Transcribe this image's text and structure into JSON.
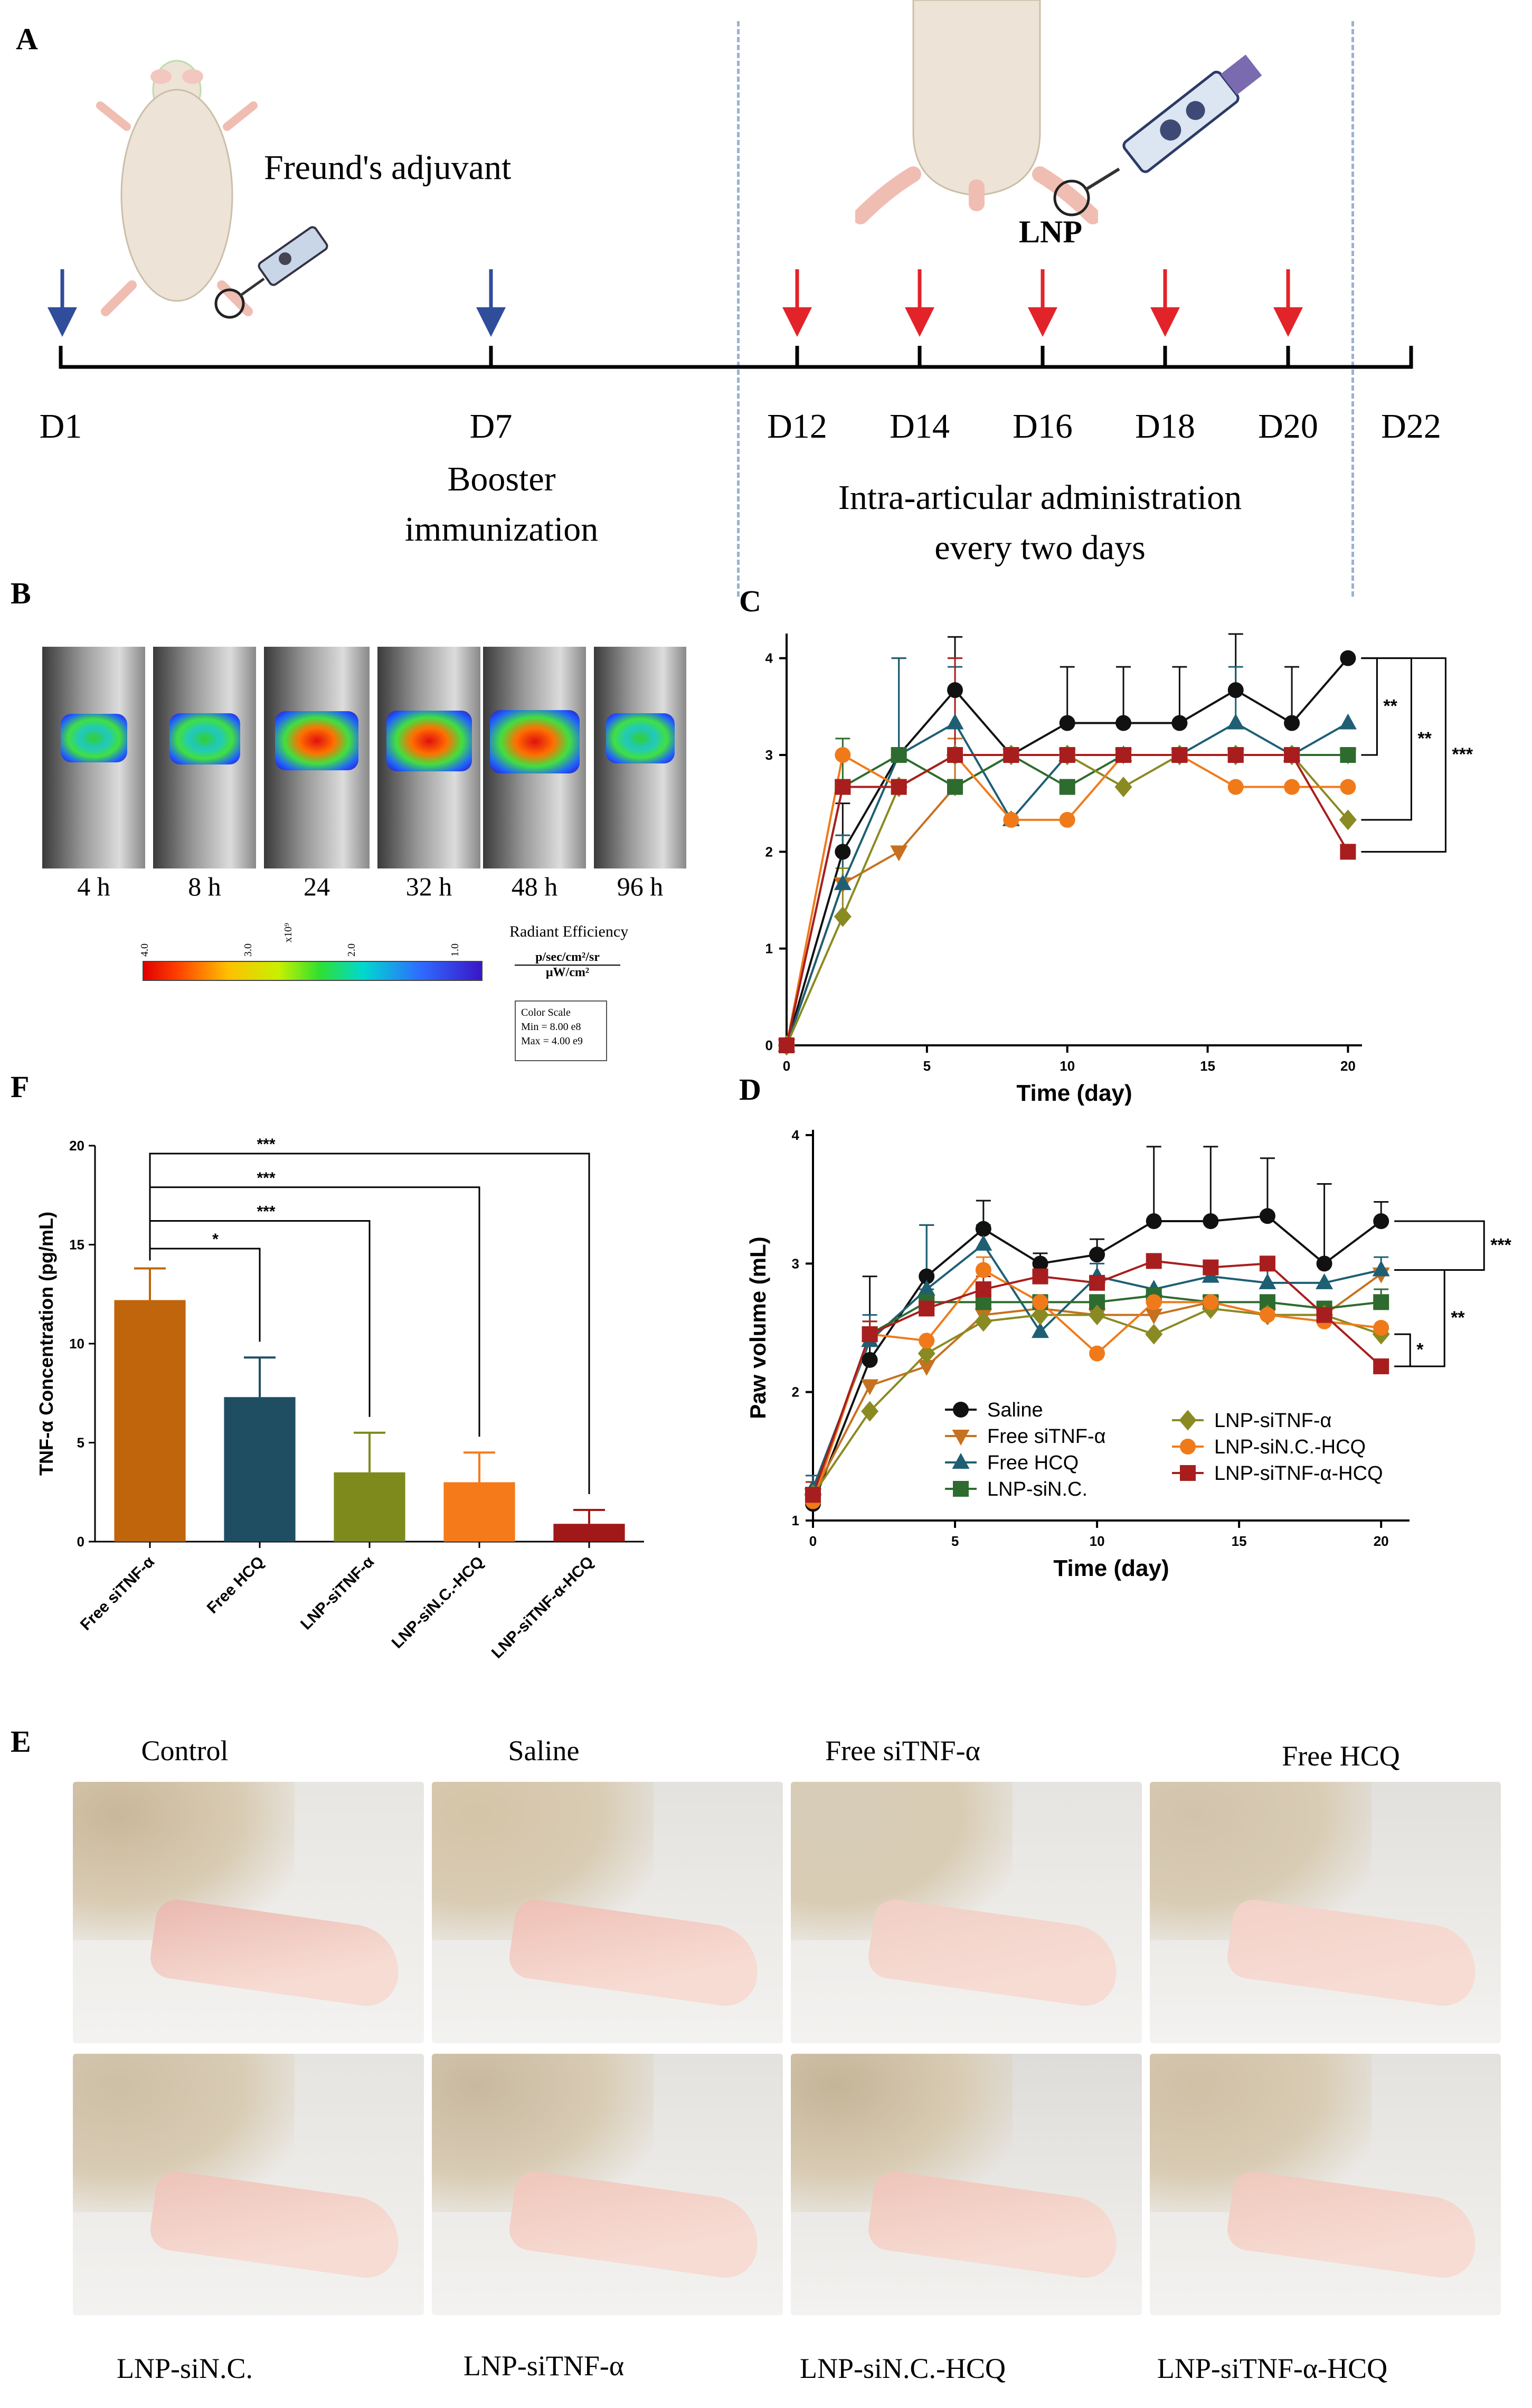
{
  "panels": {
    "A": "A",
    "B": "B",
    "C": "C",
    "D": "D",
    "E": "E",
    "F": "F"
  },
  "timeline": {
    "days": [
      "D1",
      "D7",
      "D12",
      "D14",
      "D16",
      "D18",
      "D20",
      "D22"
    ],
    "adjuvant_label": "Freund's adjuvant",
    "booster_line1": "Booster",
    "booster_line2": "immunization",
    "lnp_label": "LNP",
    "admin_line1": "Intra-articular administration",
    "admin_line2": "every two days"
  },
  "ivis": {
    "timepoints": [
      "4 h",
      "8 h",
      "24",
      "32 h",
      "48 h",
      "96 h"
    ],
    "intensity": [
      0.45,
      0.55,
      0.85,
      0.9,
      1.0,
      0.5
    ],
    "colorbar_ticks": [
      "4.0",
      "3.0",
      "2.0",
      "1.0"
    ],
    "colorbar_exp": "x10⁹",
    "radiant_title": "Radiant Efficiency",
    "radiant_num": "p/sec/cm²/sr",
    "radiant_den": "μW/cm²",
    "scale_title": "Color Scale",
    "scale_min": "Min = 8.00 e8",
    "scale_max": "Max = 4.00 e9"
  },
  "chart_data": [
    {
      "id": "C",
      "type": "line",
      "title": "",
      "xlabel": "Time (day)",
      "ylabel": "",
      "xlim": [
        0,
        20.5
      ],
      "ylim": [
        0,
        4.2
      ],
      "xticks": [
        0,
        5,
        10,
        15,
        20
      ],
      "yticks": [
        0,
        1,
        2,
        3,
        4
      ],
      "x": [
        0,
        2,
        4,
        6,
        8,
        10,
        12,
        14,
        16,
        18,
        20
      ],
      "series": [
        {
          "name": "Saline",
          "color": "#111111",
          "marker": "circle",
          "values": [
            0,
            2.0,
            3.0,
            3.67,
            3.0,
            3.33,
            3.33,
            3.33,
            3.67,
            3.33,
            4.0
          ],
          "err": [
            0,
            0.5,
            1.0,
            0.55,
            0,
            0.58,
            0.58,
            0.58,
            0.58,
            0.58,
            0
          ]
        },
        {
          "name": "Free siTNF-α",
          "color": "#C6711F",
          "marker": "triangle-down",
          "values": [
            0,
            1.67,
            2.0,
            2.67,
            3.0,
            3.0,
            3.0,
            3.0,
            3.0,
            3.0,
            3.0
          ],
          "err": [
            0,
            0.5,
            0,
            0.5,
            0,
            0,
            0,
            0,
            0,
            0,
            0
          ]
        },
        {
          "name": "Free HCQ",
          "color": "#1E5F74",
          "marker": "triangle-up",
          "values": [
            0,
            1.67,
            3.0,
            3.33,
            2.33,
            3.0,
            3.0,
            3.0,
            3.33,
            3.0,
            3.33
          ],
          "err": [
            0,
            0.5,
            1.0,
            0.58,
            0,
            0,
            0,
            0,
            0.58,
            0,
            0
          ]
        },
        {
          "name": "LNP-siN.C.",
          "color": "#2E6B2E",
          "marker": "square",
          "values": [
            0,
            2.67,
            3.0,
            2.67,
            3.0,
            2.67,
            3.0,
            3.0,
            3.0,
            3.0,
            3.0
          ],
          "err": [
            0,
            0.5,
            0,
            0,
            0,
            0,
            0,
            0,
            0,
            0,
            0
          ]
        },
        {
          "name": "LNP-siTNF-α",
          "color": "#8A8A23",
          "marker": "diamond",
          "values": [
            0,
            1.33,
            2.67,
            3.0,
            3.0,
            3.0,
            2.67,
            3.0,
            3.0,
            3.0,
            2.33
          ],
          "err": [
            0,
            0.5,
            0,
            0,
            0,
            0,
            0,
            0,
            0,
            0,
            0
          ]
        },
        {
          "name": "LNP-siN.C.-HCQ",
          "color": "#F07A1A",
          "marker": "circle",
          "values": [
            0,
            3.0,
            2.67,
            3.0,
            2.33,
            2.33,
            3.0,
            3.0,
            2.67,
            2.67,
            2.67
          ],
          "err": [
            0,
            0,
            0,
            1.0,
            0,
            0,
            0,
            0,
            0,
            0,
            0
          ]
        },
        {
          "name": "LNP-siTNF-α-HCQ",
          "color": "#A81E1E",
          "marker": "square",
          "values": [
            0,
            2.67,
            2.67,
            3.0,
            3.0,
            3.0,
            3.0,
            3.0,
            3.0,
            3.0,
            2.0
          ],
          "err": [
            0,
            0,
            0,
            1.0,
            0,
            0,
            0,
            0,
            0,
            0,
            0
          ]
        }
      ],
      "significance": [
        "**",
        "**",
        "***"
      ]
    },
    {
      "id": "D",
      "type": "line",
      "title": "",
      "xlabel": "Time (day)",
      "ylabel": "Paw volume (mL)",
      "xlim": [
        0,
        21
      ],
      "ylim": [
        1,
        4
      ],
      "xticks": [
        0,
        5,
        10,
        15,
        20
      ],
      "yticks": [
        1,
        2,
        3,
        4
      ],
      "x": [
        0,
        2,
        4,
        6,
        8,
        10,
        12,
        14,
        16,
        18,
        20
      ],
      "series": [
        {
          "name": "Saline",
          "color": "#111111",
          "marker": "circle",
          "values": [
            1.13,
            2.25,
            2.9,
            3.27,
            3.0,
            3.07,
            3.33,
            3.33,
            3.37,
            3.0,
            3.33
          ],
          "err": [
            0.1,
            0.65,
            0.4,
            0.22,
            0.08,
            0.12,
            0.58,
            0.58,
            0.45,
            0.62,
            0.15
          ]
        },
        {
          "name": "Free siTNF-α",
          "color": "#C6711F",
          "marker": "triangle-down",
          "values": [
            1.2,
            2.05,
            2.2,
            2.6,
            2.65,
            2.6,
            2.6,
            2.7,
            2.6,
            2.6,
            2.92
          ],
          "err": [
            0.1,
            0,
            0,
            0,
            0,
            0,
            0,
            0,
            0,
            0,
            0
          ]
        },
        {
          "name": "Free HCQ",
          "color": "#1E5F74",
          "marker": "triangle-up",
          "values": [
            1.25,
            2.4,
            2.8,
            3.15,
            2.47,
            2.9,
            2.8,
            2.9,
            2.85,
            2.85,
            2.95
          ],
          "err": [
            0.1,
            0.2,
            0.5,
            0.15,
            0,
            0.1,
            0,
            0,
            0.2,
            0,
            0.1
          ]
        },
        {
          "name": "LNP-siN.C.",
          "color": "#2E6B2E",
          "marker": "square",
          "values": [
            1.2,
            2.45,
            2.7,
            2.7,
            2.7,
            2.7,
            2.75,
            2.7,
            2.7,
            2.65,
            2.7
          ],
          "err": [
            0.1,
            0.1,
            0.1,
            0.1,
            0,
            0,
            0,
            0,
            0,
            0,
            0.1
          ]
        },
        {
          "name": "LNP-siTNF-α",
          "color": "#8A8A23",
          "marker": "diamond",
          "values": [
            1.2,
            1.85,
            2.3,
            2.55,
            2.6,
            2.6,
            2.45,
            2.65,
            2.6,
            2.6,
            2.45
          ],
          "err": [
            0.1,
            0,
            0,
            0,
            0,
            0,
            0,
            0,
            0,
            0,
            0
          ]
        },
        {
          "name": "LNP-siN.C.-HCQ",
          "color": "#F07A1A",
          "marker": "circle",
          "values": [
            1.15,
            2.45,
            2.4,
            2.95,
            2.7,
            2.3,
            2.7,
            2.7,
            2.6,
            2.55,
            2.5
          ],
          "err": [
            0.1,
            0.1,
            0,
            0.1,
            0,
            0,
            0,
            0,
            0,
            0,
            0
          ]
        },
        {
          "name": "LNP-siTNF-α-HCQ",
          "color": "#A81E1E",
          "marker": "square",
          "values": [
            1.2,
            2.45,
            2.65,
            2.8,
            2.9,
            2.85,
            3.02,
            2.97,
            3.0,
            2.6,
            2.2
          ],
          "err": [
            0.1,
            0.1,
            0.1,
            0.1,
            0,
            0,
            0,
            0,
            0,
            0,
            0.05
          ]
        }
      ],
      "legend": [
        "Saline",
        "Free siTNF-α",
        "Free HCQ",
        "LNP-siN.C.",
        "LNP-siTNF-α",
        "LNP-siN.C.-HCQ",
        "LNP-siTNF-α-HCQ"
      ],
      "significance": [
        "*",
        "**",
        "***"
      ]
    },
    {
      "id": "F",
      "type": "bar",
      "title": "",
      "xlabel": "",
      "ylabel": "TNF-α Concentration (pg/mL)",
      "ylim": [
        0,
        20
      ],
      "yticks": [
        0,
        5,
        10,
        15,
        20
      ],
      "categories": [
        "Free siTNF-α",
        "Free HCQ",
        "LNP-siTNF-α",
        "LNP-siN.C.-HCQ",
        "LNP-siTNF-α-HCQ"
      ],
      "values": [
        12.2,
        7.3,
        3.5,
        3.0,
        0.9
      ],
      "err": [
        1.6,
        2.0,
        2.0,
        1.5,
        0.7
      ],
      "colors": [
        "#C0650B",
        "#1F4E63",
        "#7E8A1B",
        "#F57A1A",
        "#A01818"
      ],
      "significance": [
        "*",
        "***",
        "***",
        "***"
      ]
    }
  ],
  "photos": {
    "row1": [
      "Control",
      "Saline",
      "Free siTNF-α",
      "Free HCQ"
    ],
    "row2": [
      "LNP-siN.C.",
      "LNP-siTNF-α",
      "LNP-siN.C.-HCQ",
      "LNP-siTNF-α-HCQ"
    ]
  }
}
